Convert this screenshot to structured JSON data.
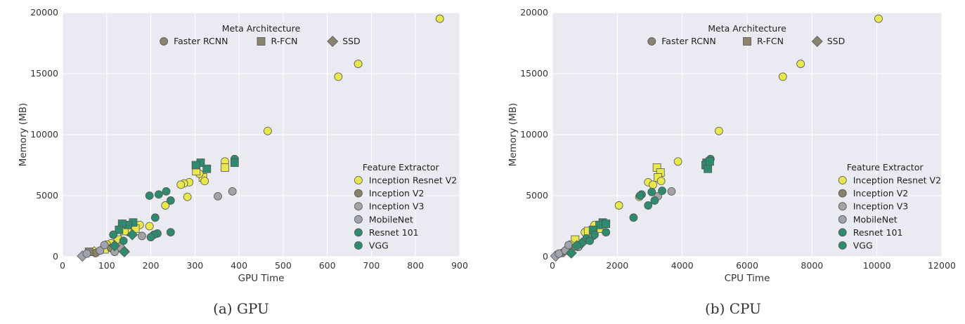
{
  "colors": {
    "plot_bg": "#eaeaf2",
    "grid": "#ffffff",
    "marker_edge": "#555555",
    "Inception Resnet V2": "#e8e84c",
    "Inception V2": "#8b8068",
    "Inception V3": "#a3a3a3",
    "MobileNet": "#9ea3ad",
    "Resnet 101": "#2e8b6e",
    "VGG": "#2e8b6e",
    "meta_marker": "#8c8270"
  },
  "chart_data": [
    {
      "type": "scatter",
      "caption": "(a) GPU",
      "xlabel": "GPU Time",
      "ylabel": "Memory (MB)",
      "xlim": [
        0,
        900
      ],
      "ylim": [
        0,
        20000
      ],
      "xticks": [
        "0",
        "100",
        "200",
        "300",
        "400",
        "500",
        "600",
        "700",
        "800",
        "900"
      ],
      "yticks": [
        "0",
        "5000",
        "10000",
        "15000",
        "20000"
      ],
      "grid": true,
      "meta_legend": {
        "title": "Meta Architecture",
        "placement": "top-center",
        "entries": [
          {
            "label": "Faster RCNN",
            "marker": "circle"
          },
          {
            "label": "R-FCN",
            "marker": "square"
          },
          {
            "label": "SSD",
            "marker": "diamond"
          }
        ]
      },
      "feature_legend": {
        "title": "Feature Extractor",
        "placement": "center-right",
        "entries": [
          "Inception Resnet V2",
          "Inception V2",
          "Inception V3",
          "MobileNet",
          "Resnet 101",
          "VGG"
        ]
      },
      "series": [
        {
          "name": "Inception Resnet V2",
          "points": [
            {
              "x": 855,
              "y": 19500,
              "m": "circle"
            },
            {
              "x": 670,
              "y": 15800,
              "m": "circle"
            },
            {
              "x": 625,
              "y": 14750,
              "m": "circle"
            },
            {
              "x": 465,
              "y": 10300,
              "m": "circle"
            },
            {
              "x": 368,
              "y": 7800,
              "m": "circle"
            },
            {
              "x": 368,
              "y": 7300,
              "m": "square"
            },
            {
              "x": 318,
              "y": 6500,
              "m": "square"
            },
            {
              "x": 310,
              "y": 6800,
              "m": "circle"
            },
            {
              "x": 322,
              "y": 6200,
              "m": "circle"
            },
            {
              "x": 303,
              "y": 7000,
              "m": "square"
            },
            {
              "x": 287,
              "y": 6100,
              "m": "circle"
            },
            {
              "x": 275,
              "y": 6000,
              "m": "circle"
            },
            {
              "x": 268,
              "y": 5900,
              "m": "circle"
            },
            {
              "x": 283,
              "y": 4900,
              "m": "circle"
            },
            {
              "x": 233,
              "y": 4200,
              "m": "circle"
            },
            {
              "x": 197,
              "y": 2500,
              "m": "circle"
            },
            {
              "x": 175,
              "y": 2600,
              "m": "circle"
            },
            {
              "x": 165,
              "y": 2300,
              "m": "square"
            },
            {
              "x": 150,
              "y": 2000,
              "m": "circle"
            },
            {
              "x": 140,
              "y": 2100,
              "m": "square"
            },
            {
              "x": 125,
              "y": 1400,
              "m": "square"
            },
            {
              "x": 110,
              "y": 1100,
              "m": "circle"
            },
            {
              "x": 100,
              "y": 1000,
              "m": "circle"
            },
            {
              "x": 95,
              "y": 600,
              "m": "square"
            },
            {
              "x": 72,
              "y": 400,
              "m": "diamond"
            }
          ]
        },
        {
          "name": "Inception V2",
          "points": [
            {
              "x": 75,
              "y": 300,
              "m": "circle"
            },
            {
              "x": 60,
              "y": 400,
              "m": "square"
            },
            {
              "x": 138,
              "y": 500,
              "m": "diamond"
            },
            {
              "x": 110,
              "y": 700,
              "m": "circle"
            }
          ]
        },
        {
          "name": "Inception V3",
          "points": [
            {
              "x": 385,
              "y": 5350,
              "m": "circle"
            },
            {
              "x": 352,
              "y": 4950,
              "m": "circle"
            },
            {
              "x": 180,
              "y": 1700,
              "m": "circle"
            },
            {
              "x": 130,
              "y": 800,
              "m": "diamond"
            },
            {
              "x": 118,
              "y": 400,
              "m": "circle"
            }
          ]
        },
        {
          "name": "MobileNet",
          "points": [
            {
              "x": 45,
              "y": 50,
              "m": "diamond"
            },
            {
              "x": 55,
              "y": 250,
              "m": "circle"
            },
            {
              "x": 85,
              "y": 500,
              "m": "circle"
            },
            {
              "x": 95,
              "y": 950,
              "m": "circle"
            }
          ]
        },
        {
          "name": "Resnet 101",
          "points": [
            {
              "x": 390,
              "y": 8000,
              "m": "circle"
            },
            {
              "x": 390,
              "y": 7700,
              "m": "square"
            },
            {
              "x": 313,
              "y": 7700,
              "m": "square"
            },
            {
              "x": 327,
              "y": 7200,
              "m": "square"
            },
            {
              "x": 302,
              "y": 7500,
              "m": "square"
            },
            {
              "x": 235,
              "y": 5350,
              "m": "circle"
            },
            {
              "x": 218,
              "y": 5100,
              "m": "circle"
            },
            {
              "x": 197,
              "y": 5000,
              "m": "circle"
            },
            {
              "x": 245,
              "y": 4600,
              "m": "circle"
            },
            {
              "x": 210,
              "y": 3200,
              "m": "circle"
            },
            {
              "x": 160,
              "y": 2800,
              "m": "square"
            },
            {
              "x": 148,
              "y": 2600,
              "m": "square"
            },
            {
              "x": 135,
              "y": 2700,
              "m": "square"
            },
            {
              "x": 128,
              "y": 2200,
              "m": "square"
            },
            {
              "x": 245,
              "y": 2000,
              "m": "circle"
            },
            {
              "x": 215,
              "y": 1900,
              "m": "circle"
            },
            {
              "x": 207,
              "y": 1800,
              "m": "circle"
            },
            {
              "x": 200,
              "y": 1600,
              "m": "circle"
            },
            {
              "x": 158,
              "y": 1800,
              "m": "diamond"
            },
            {
              "x": 138,
              "y": 1300,
              "m": "circle"
            },
            {
              "x": 115,
              "y": 1800,
              "m": "circle"
            }
          ]
        },
        {
          "name": "VGG",
          "points": [
            {
              "x": 140,
              "y": 400,
              "m": "diamond"
            },
            {
              "x": 118,
              "y": 900,
              "m": "diamond"
            }
          ]
        }
      ]
    },
    {
      "type": "scatter",
      "caption": "(b) CPU",
      "xlabel": "CPU Time",
      "ylabel": "Memory (MB)",
      "xlim": [
        0,
        12000
      ],
      "ylim": [
        0,
        20000
      ],
      "xticks": [
        "0",
        "2000",
        "4000",
        "6000",
        "8000",
        "10000",
        "12000"
      ],
      "yticks": [
        "0",
        "5000",
        "10000",
        "15000",
        "20000"
      ],
      "grid": true,
      "meta_legend": {
        "title": "Meta Architecture",
        "placement": "top-center",
        "entries": [
          {
            "label": "Faster RCNN",
            "marker": "circle"
          },
          {
            "label": "R-FCN",
            "marker": "square"
          },
          {
            "label": "SSD",
            "marker": "diamond"
          }
        ]
      },
      "feature_legend": {
        "title": "Feature Extractor",
        "placement": "center-right",
        "entries": [
          "Inception Resnet V2",
          "Inception V2",
          "Inception V3",
          "MobileNet",
          "Resnet 101",
          "VGG"
        ]
      },
      "series": [
        {
          "name": "Inception Resnet V2",
          "points": [
            {
              "x": 10050,
              "y": 19500,
              "m": "circle"
            },
            {
              "x": 7650,
              "y": 15800,
              "m": "circle"
            },
            {
              "x": 7100,
              "y": 14750,
              "m": "circle"
            },
            {
              "x": 5130,
              "y": 10300,
              "m": "circle"
            },
            {
              "x": 3870,
              "y": 7800,
              "m": "circle"
            },
            {
              "x": 3220,
              "y": 7300,
              "m": "square"
            },
            {
              "x": 3330,
              "y": 6900,
              "m": "square"
            },
            {
              "x": 3250,
              "y": 6500,
              "m": "square"
            },
            {
              "x": 3350,
              "y": 6200,
              "m": "circle"
            },
            {
              "x": 2950,
              "y": 6100,
              "m": "circle"
            },
            {
              "x": 3100,
              "y": 5900,
              "m": "circle"
            },
            {
              "x": 2680,
              "y": 4900,
              "m": "circle"
            },
            {
              "x": 2050,
              "y": 4200,
              "m": "circle"
            },
            {
              "x": 1300,
              "y": 2600,
              "m": "circle"
            },
            {
              "x": 1500,
              "y": 2300,
              "m": "square"
            },
            {
              "x": 1000,
              "y": 2000,
              "m": "circle"
            },
            {
              "x": 1100,
              "y": 2100,
              "m": "square"
            },
            {
              "x": 700,
              "y": 1400,
              "m": "square"
            },
            {
              "x": 550,
              "y": 1000,
              "m": "circle"
            },
            {
              "x": 450,
              "y": 600,
              "m": "diamond"
            }
          ]
        },
        {
          "name": "Inception V2",
          "points": [
            {
              "x": 300,
              "y": 300,
              "m": "circle"
            },
            {
              "x": 500,
              "y": 500,
              "m": "diamond"
            },
            {
              "x": 600,
              "y": 700,
              "m": "circle"
            }
          ]
        },
        {
          "name": "Inception V3",
          "points": [
            {
              "x": 3670,
              "y": 5350,
              "m": "circle"
            },
            {
              "x": 3250,
              "y": 4950,
              "m": "circle"
            },
            {
              "x": 1250,
              "y": 1700,
              "m": "circle"
            },
            {
              "x": 800,
              "y": 800,
              "m": "circle"
            }
          ]
        },
        {
          "name": "MobileNet",
          "points": [
            {
              "x": 100,
              "y": 50,
              "m": "diamond"
            },
            {
              "x": 200,
              "y": 250,
              "m": "circle"
            },
            {
              "x": 400,
              "y": 500,
              "m": "circle"
            },
            {
              "x": 500,
              "y": 950,
              "m": "circle"
            }
          ]
        },
        {
          "name": "Resnet 101",
          "points": [
            {
              "x": 4870,
              "y": 8000,
              "m": "circle"
            },
            {
              "x": 4750,
              "y": 7700,
              "m": "square"
            },
            {
              "x": 4720,
              "y": 7500,
              "m": "square"
            },
            {
              "x": 4790,
              "y": 7200,
              "m": "square"
            },
            {
              "x": 4850,
              "y": 7800,
              "m": "square"
            },
            {
              "x": 3380,
              "y": 5400,
              "m": "circle"
            },
            {
              "x": 3060,
              "y": 5300,
              "m": "circle"
            },
            {
              "x": 2750,
              "y": 5100,
              "m": "circle"
            },
            {
              "x": 2700,
              "y": 5000,
              "m": "circle"
            },
            {
              "x": 3150,
              "y": 4600,
              "m": "circle"
            },
            {
              "x": 2950,
              "y": 4200,
              "m": "circle"
            },
            {
              "x": 2500,
              "y": 3200,
              "m": "circle"
            },
            {
              "x": 1550,
              "y": 2800,
              "m": "square"
            },
            {
              "x": 1450,
              "y": 2600,
              "m": "square"
            },
            {
              "x": 1650,
              "y": 2700,
              "m": "square"
            },
            {
              "x": 1250,
              "y": 2200,
              "m": "square"
            },
            {
              "x": 1650,
              "y": 2000,
              "m": "circle"
            },
            {
              "x": 1300,
              "y": 1800,
              "m": "circle"
            },
            {
              "x": 1050,
              "y": 1500,
              "m": "circle"
            },
            {
              "x": 1150,
              "y": 1300,
              "m": "circle"
            },
            {
              "x": 900,
              "y": 1100,
              "m": "diamond"
            }
          ]
        },
        {
          "name": "VGG",
          "points": [
            {
              "x": 580,
              "y": 300,
              "m": "diamond"
            },
            {
              "x": 750,
              "y": 900,
              "m": "diamond"
            }
          ]
        }
      ]
    }
  ]
}
